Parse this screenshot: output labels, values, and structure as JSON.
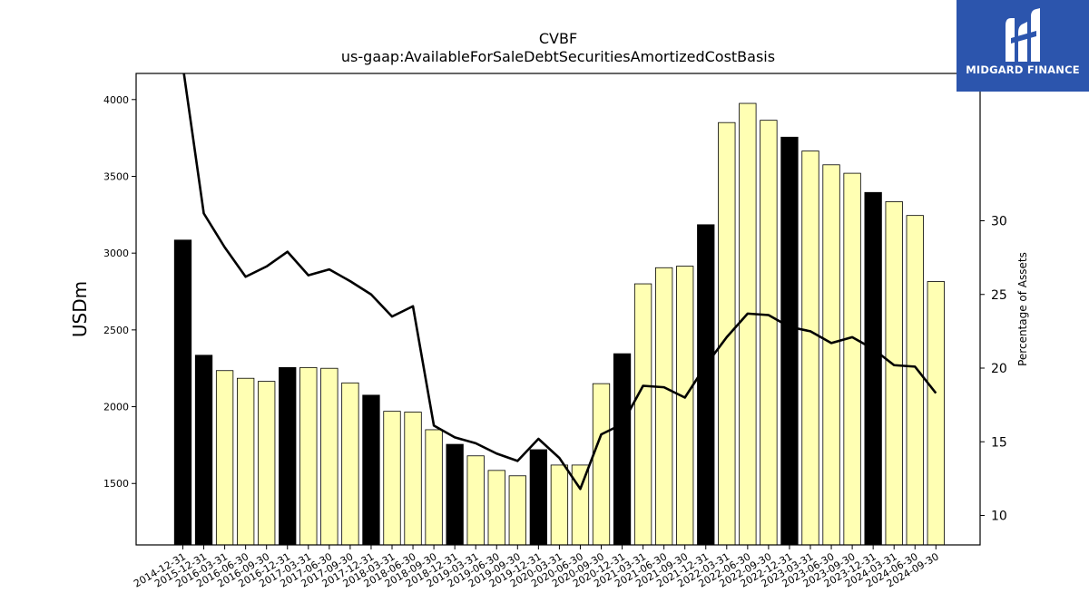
{
  "brand": {
    "name": "MIDGARD FINANCE",
    "color": "#2c55ad"
  },
  "chart_data": {
    "type": "bar",
    "title": "CVBF",
    "subtitle": "us-gaap:AvailableForSaleDebtSecuritiesAmortizedCostBasis",
    "ylabel": "USDm",
    "y2label": "Percentage of Assets",
    "ylim": [
      1100,
      4170
    ],
    "y2lim": [
      8,
      40
    ],
    "yticks": [
      1500,
      2000,
      2500,
      3000,
      3500,
      4000
    ],
    "y2ticks": [
      10,
      15,
      20,
      25,
      30
    ],
    "categories": [
      "2014-12-31",
      "2015-12-31",
      "2016-03-31",
      "2016-06-30",
      "2016-09-30",
      "2016-12-31",
      "2017-03-31",
      "2017-06-30",
      "2017-09-30",
      "2017-12-31",
      "2018-03-31",
      "2018-06-30",
      "2018-09-30",
      "2018-12-31",
      "2019-03-31",
      "2019-06-30",
      "2019-09-30",
      "2019-12-31",
      "2020-03-31",
      "2020-06-30",
      "2020-09-30",
      "2020-12-31",
      "2021-03-31",
      "2021-06-30",
      "2021-09-30",
      "2021-12-31",
      "2022-03-31",
      "2022-06-30",
      "2022-09-30",
      "2022-12-31",
      "2023-03-31",
      "2023-06-30",
      "2023-09-30",
      "2023-12-31",
      "2024-03-31",
      "2024-06-30",
      "2024-09-30"
    ],
    "series": [
      {
        "type": "bar",
        "axis": "left",
        "values": [
          3085,
          2335,
          2235,
          2185,
          2165,
          2255,
          2255,
          2250,
          2155,
          2075,
          1970,
          1965,
          1850,
          1755,
          1680,
          1585,
          1550,
          1720,
          1620,
          1620,
          2150,
          2345,
          2800,
          2905,
          2915,
          3185,
          3850,
          3975,
          3865,
          3755,
          3665,
          3575,
          3520,
          3395,
          3335,
          3245,
          2815
        ],
        "annual": [
          true,
          true,
          false,
          false,
          false,
          true,
          false,
          false,
          false,
          true,
          false,
          false,
          false,
          true,
          false,
          false,
          false,
          true,
          false,
          false,
          false,
          true,
          false,
          false,
          false,
          true,
          false,
          false,
          false,
          true,
          false,
          false,
          false,
          true,
          false,
          false,
          false
        ],
        "color_annual": "#000000",
        "color_quarterly": "#ffffb3"
      },
      {
        "type": "line",
        "axis": "right",
        "values": [
          40.5,
          30.5,
          28.2,
          26.2,
          26.9,
          27.9,
          26.3,
          26.7,
          25.9,
          25.0,
          23.5,
          24.2,
          16.1,
          15.3,
          14.9,
          14.2,
          13.7,
          15.2,
          13.9,
          11.8,
          15.5,
          16.2,
          18.8,
          18.7,
          18.0,
          20.2,
          22.1,
          23.7,
          23.6,
          22.8,
          22.5,
          21.7,
          22.1,
          21.3,
          20.2,
          20.1,
          18.3
        ],
        "color": "#000000"
      }
    ],
    "grid": false,
    "legend": "none"
  }
}
